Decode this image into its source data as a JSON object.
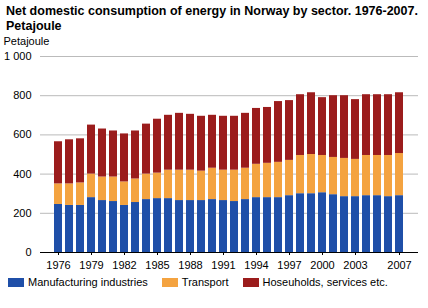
{
  "chart_data": {
    "type": "bar",
    "stacked": true,
    "title": "Net domestic consumption of energy in Norway by sector. 1976-2007. Petajoule",
    "y_label": "Petajoule",
    "categories": [
      "1976",
      null,
      null,
      "1979",
      null,
      null,
      "1982",
      null,
      null,
      "1985",
      null,
      null,
      "1988",
      null,
      null,
      "1991",
      null,
      null,
      "1994",
      null,
      null,
      "1997",
      null,
      null,
      "2000",
      null,
      null,
      "2003",
      null,
      null,
      null,
      "2007"
    ],
    "series": [
      {
        "name": "Manufacturing industries",
        "color": "#1f4fa8",
        "values": [
          245,
          240,
          240,
          280,
          265,
          260,
          240,
          255,
          270,
          275,
          275,
          265,
          265,
          265,
          270,
          265,
          260,
          270,
          280,
          280,
          280,
          290,
          300,
          300,
          305,
          295,
          285,
          285,
          290,
          290,
          285,
          290
        ]
      },
      {
        "name": "Transport",
        "color": "#f4a340",
        "values": [
          105,
          110,
          115,
          120,
          120,
          125,
          120,
          120,
          130,
          130,
          145,
          155,
          155,
          150,
          160,
          155,
          160,
          160,
          170,
          175,
          180,
          180,
          195,
          200,
          190,
          190,
          195,
          190,
          205,
          205,
          210,
          215
        ]
      },
      {
        "name": "Hoseuholds, services etc.",
        "color": "#9b1c1c",
        "values": [
          215,
          225,
          225,
          250,
          245,
          235,
          245,
          245,
          255,
          275,
          280,
          290,
          285,
          280,
          270,
          275,
          275,
          280,
          285,
          285,
          310,
          305,
          310,
          315,
          295,
          315,
          320,
          305,
          310,
          310,
          310,
          310
        ]
      }
    ],
    "ylim": [
      0,
      1000
    ],
    "yticks": [
      0,
      200,
      400,
      600,
      800,
      {
        "value": 1000,
        "label": "1 000"
      }
    ],
    "grid": true,
    "legend": "bottom"
  }
}
